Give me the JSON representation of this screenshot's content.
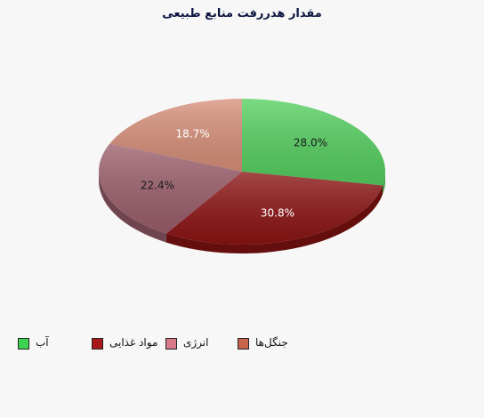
{
  "chart_data": {
    "type": "pie",
    "title": "مقدار هدررفت منابع طبیعی",
    "slices": [
      {
        "label": "آب",
        "value": 28.0,
        "value_label": "28.0%",
        "color": "#55d060",
        "label_color": "#1a1a1a"
      },
      {
        "label": "مواد غذایی",
        "value": 30.8,
        "value_label": "30.8%",
        "color": "#8c1414",
        "label_color": "#ffffff"
      },
      {
        "label": "انرژی",
        "value": 22.4,
        "value_label": "22.4%",
        "color": "#9c5f6c",
        "label_color": "#1a1a1a"
      },
      {
        "label": "جنگل‌ها",
        "value": 18.7,
        "value_label": "18.7%",
        "color": "#d8907a",
        "label_color": "#ffffff"
      }
    ],
    "legend": {
      "placement": "bottom",
      "items": [
        {
          "label": "آب",
          "color": "#3bd34f"
        },
        {
          "label": "مواد غذایی",
          "color": "#a81818"
        },
        {
          "label": "انرژی",
          "color": "#d87a8a"
        },
        {
          "label": "جنگل‌ها",
          "color": "#c8644a"
        }
      ]
    }
  }
}
